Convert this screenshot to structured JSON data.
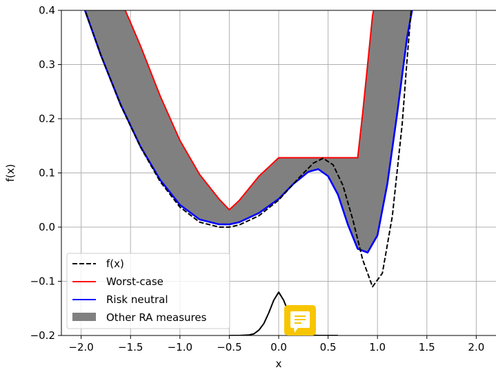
{
  "chart_data": {
    "type": "line",
    "title": "",
    "xlabel": "x",
    "ylabel": "f(x)",
    "xlim": [
      -2.2,
      2.2
    ],
    "ylim": [
      -0.2,
      0.4
    ],
    "grid": true,
    "legend_placement": "lower-left",
    "x_ticks": [
      -2.0,
      -1.5,
      -1.0,
      -0.5,
      0.0,
      0.5,
      1.0,
      1.5,
      2.0
    ],
    "x_tick_labels": [
      "−2.0",
      "−1.5",
      "−1.0",
      "−0.5",
      "0.0",
      "0.5",
      "1.0",
      "1.5",
      "2.0"
    ],
    "y_ticks": [
      -0.2,
      -0.1,
      0.0,
      0.1,
      0.2,
      0.3,
      0.4
    ],
    "y_tick_labels": [
      "−0.2",
      "−0.1",
      "0.0",
      "0.1",
      "0.2",
      "0.3",
      "0.4"
    ],
    "series": [
      {
        "name": "f(x)",
        "style": "dashed",
        "color": "#000000",
        "x": [
          -2.0,
          -1.8,
          -1.6,
          -1.4,
          -1.2,
          -1.0,
          -0.8,
          -0.6,
          -0.5,
          -0.4,
          -0.2,
          0.0,
          0.2,
          0.35,
          0.45,
          0.55,
          0.65,
          0.75,
          0.85,
          0.95,
          1.05,
          1.15,
          1.25,
          1.3,
          1.35
        ],
        "y": [
          0.42,
          0.317,
          0.225,
          0.148,
          0.084,
          0.037,
          0.009,
          0.0,
          0.0,
          0.004,
          0.021,
          0.05,
          0.09,
          0.118,
          0.127,
          0.115,
          0.077,
          0.014,
          -0.06,
          -0.11,
          -0.085,
          0.02,
          0.19,
          0.31,
          0.42
        ]
      },
      {
        "name": "Worst-case",
        "style": "solid",
        "color": "#ff0000",
        "x": [
          -1.6,
          -1.4,
          -1.2,
          -1.0,
          -0.8,
          -0.6,
          -0.5,
          -0.4,
          -0.2,
          0.0,
          0.2,
          0.4,
          0.6,
          0.8,
          0.85,
          0.9,
          0.95,
          0.98
        ],
        "y": [
          0.42,
          0.335,
          0.242,
          0.16,
          0.097,
          0.051,
          0.032,
          0.049,
          0.094,
          0.128,
          0.128,
          0.128,
          0.128,
          0.128,
          0.21,
          0.3,
          0.39,
          0.42
        ]
      },
      {
        "name": "Risk neutral",
        "style": "solid",
        "color": "#0000ff",
        "x": [
          -2.0,
          -1.8,
          -1.6,
          -1.4,
          -1.2,
          -1.0,
          -0.8,
          -0.6,
          -0.5,
          -0.4,
          -0.2,
          0.0,
          0.15,
          0.3,
          0.4,
          0.5,
          0.6,
          0.7,
          0.8,
          0.9,
          1.0,
          1.1,
          1.2,
          1.3,
          1.37
        ],
        "y": [
          0.42,
          0.317,
          0.226,
          0.149,
          0.087,
          0.041,
          0.014,
          0.005,
          0.005,
          0.009,
          0.026,
          0.052,
          0.08,
          0.102,
          0.107,
          0.094,
          0.06,
          0.005,
          -0.04,
          -0.047,
          -0.015,
          0.08,
          0.21,
          0.35,
          0.42
        ]
      },
      {
        "name": "",
        "style": "solid",
        "color": "#000000",
        "x": [
          -0.5,
          -0.4,
          -0.3,
          -0.25,
          -0.2,
          -0.15,
          -0.1,
          -0.05,
          0.0,
          0.05,
          0.1,
          0.15,
          0.2,
          0.25,
          0.3,
          0.4,
          0.5,
          0.6
        ],
        "y": [
          -0.2,
          -0.2,
          -0.199,
          -0.197,
          -0.19,
          -0.178,
          -0.158,
          -0.135,
          -0.12,
          -0.135,
          -0.158,
          -0.178,
          -0.19,
          -0.197,
          -0.199,
          -0.2,
          -0.2,
          -0.2
        ]
      }
    ],
    "band": {
      "name": "Other RA measures",
      "color": "#808080"
    }
  }
}
